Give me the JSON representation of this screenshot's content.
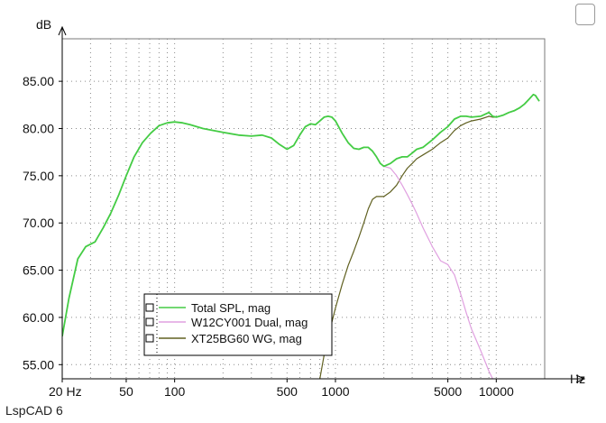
{
  "app": {
    "footer_label": "LspCAD 6"
  },
  "chart_data": {
    "type": "line",
    "ylabel": "dB",
    "xlabel": "Hz",
    "xscale": "log",
    "xlim": [
      20,
      20000
    ],
    "ylim": [
      53.5,
      89.5
    ],
    "x_ticks": [
      {
        "value": 20,
        "label": "20 Hz"
      },
      {
        "value": 50,
        "label": "50"
      },
      {
        "value": 100,
        "label": "100"
      },
      {
        "value": 500,
        "label": "500"
      },
      {
        "value": 1000,
        "label": "1000"
      },
      {
        "value": 5000,
        "label": "5000"
      },
      {
        "value": 10000,
        "label": "10000"
      }
    ],
    "y_ticks": [
      {
        "value": 85,
        "label": "85.00"
      },
      {
        "value": 80,
        "label": "80.00"
      },
      {
        "value": 75,
        "label": "75.00"
      },
      {
        "value": 70,
        "label": "70.00"
      },
      {
        "value": 65,
        "label": "65.00"
      },
      {
        "value": 60,
        "label": "60.00"
      },
      {
        "value": 55,
        "label": "55.00"
      }
    ],
    "grid": true,
    "legend_position": "bottom-center",
    "series": [
      {
        "name": "Total SPL, mag",
        "color": "#44cc44",
        "x": [
          20,
          22,
          25,
          28,
          32,
          36,
          40,
          45,
          50,
          56,
          63,
          71,
          80,
          90,
          100,
          112,
          125,
          150,
          200,
          250,
          300,
          350,
          400,
          450,
          500,
          550,
          600,
          650,
          700,
          750,
          800,
          850,
          900,
          950,
          1000,
          1100,
          1200,
          1300,
          1400,
          1500,
          1600,
          1700,
          1800,
          1900,
          2000,
          2200,
          2400,
          2600,
          2800,
          3000,
          3200,
          3500,
          4000,
          4500,
          5000,
          5500,
          6000,
          6500,
          7000,
          8000,
          9000,
          9500,
          10000,
          11000,
          12000,
          13000,
          14000,
          15000,
          16000,
          17000,
          17500,
          18000,
          18500
        ],
        "y": [
          58.0,
          62.0,
          66.2,
          67.5,
          68.0,
          69.5,
          71.0,
          73.0,
          75.0,
          77.0,
          78.5,
          79.5,
          80.3,
          80.6,
          80.7,
          80.6,
          80.4,
          80.0,
          79.6,
          79.3,
          79.2,
          79.3,
          79.0,
          78.3,
          77.8,
          78.2,
          79.3,
          80.2,
          80.5,
          80.4,
          80.8,
          81.2,
          81.3,
          81.2,
          80.8,
          79.5,
          78.5,
          77.9,
          77.8,
          78.0,
          78.0,
          77.6,
          77.0,
          76.3,
          76.0,
          76.3,
          76.8,
          77.0,
          77.0,
          77.4,
          77.8,
          78.0,
          78.8,
          79.6,
          80.2,
          81.0,
          81.3,
          81.3,
          81.2,
          81.3,
          81.7,
          81.3,
          81.2,
          81.4,
          81.7,
          81.9,
          82.2,
          82.6,
          83.1,
          83.6,
          83.5,
          83.2,
          82.9
        ]
      },
      {
        "name": "W12CY001 Dual, mag",
        "color": "#e0a0e0",
        "x": [
          20,
          22,
          25,
          28,
          32,
          36,
          40,
          45,
          50,
          56,
          63,
          71,
          80,
          90,
          100,
          112,
          125,
          150,
          200,
          250,
          300,
          350,
          400,
          450,
          500,
          550,
          600,
          650,
          700,
          750,
          800,
          850,
          900,
          950,
          1000,
          1100,
          1200,
          1300,
          1400,
          1500,
          1600,
          1700,
          1800,
          1900,
          2000,
          2200,
          2400,
          2600,
          2800,
          3000,
          3200,
          3500,
          4000,
          4500,
          5000,
          5500,
          6000,
          6500,
          7000,
          8000,
          9000,
          9500
        ],
        "y": [
          58.0,
          62.0,
          66.2,
          67.5,
          68.0,
          69.5,
          71.0,
          73.0,
          75.0,
          77.0,
          78.5,
          79.5,
          80.3,
          80.6,
          80.7,
          80.6,
          80.4,
          80.0,
          79.6,
          79.3,
          79.2,
          79.3,
          79.0,
          78.3,
          77.8,
          78.2,
          79.3,
          80.2,
          80.5,
          80.4,
          80.8,
          81.2,
          81.3,
          81.2,
          80.8,
          79.5,
          78.5,
          77.9,
          77.8,
          78.0,
          78.0,
          77.6,
          77.0,
          76.3,
          76.0,
          75.8,
          75.0,
          74.0,
          73.0,
          72.0,
          71.0,
          69.5,
          67.5,
          66.0,
          65.6,
          64.5,
          62.5,
          60.5,
          58.8,
          56.5,
          54.3,
          53.5
        ]
      },
      {
        "name": "XT25BG60 WG, mag",
        "color": "#606020",
        "x": [
          800,
          850,
          900,
          950,
          1000,
          1100,
          1200,
          1300,
          1400,
          1500,
          1600,
          1700,
          1800,
          1900,
          2000,
          2200,
          2400,
          2600,
          2800,
          3000,
          3200,
          3500,
          4000,
          4500,
          5000,
          5500,
          6000,
          6500,
          7000,
          8000,
          9000,
          9500,
          10000,
          11000,
          12000,
          13000,
          14000,
          15000,
          16000,
          17000,
          17500,
          18000,
          18500
        ],
        "y": [
          53.5,
          56.0,
          58.0,
          59.5,
          61.0,
          63.5,
          65.5,
          67.0,
          68.5,
          70.0,
          71.5,
          72.5,
          72.8,
          72.8,
          72.8,
          73.3,
          74.0,
          75.0,
          75.8,
          76.3,
          76.8,
          77.2,
          77.8,
          78.5,
          79.0,
          79.8,
          80.3,
          80.6,
          80.8,
          81.0,
          81.3,
          81.2,
          81.2,
          81.4,
          81.7,
          81.9,
          82.2,
          82.6,
          83.1,
          83.6,
          83.5,
          83.2,
          82.9
        ]
      }
    ]
  }
}
